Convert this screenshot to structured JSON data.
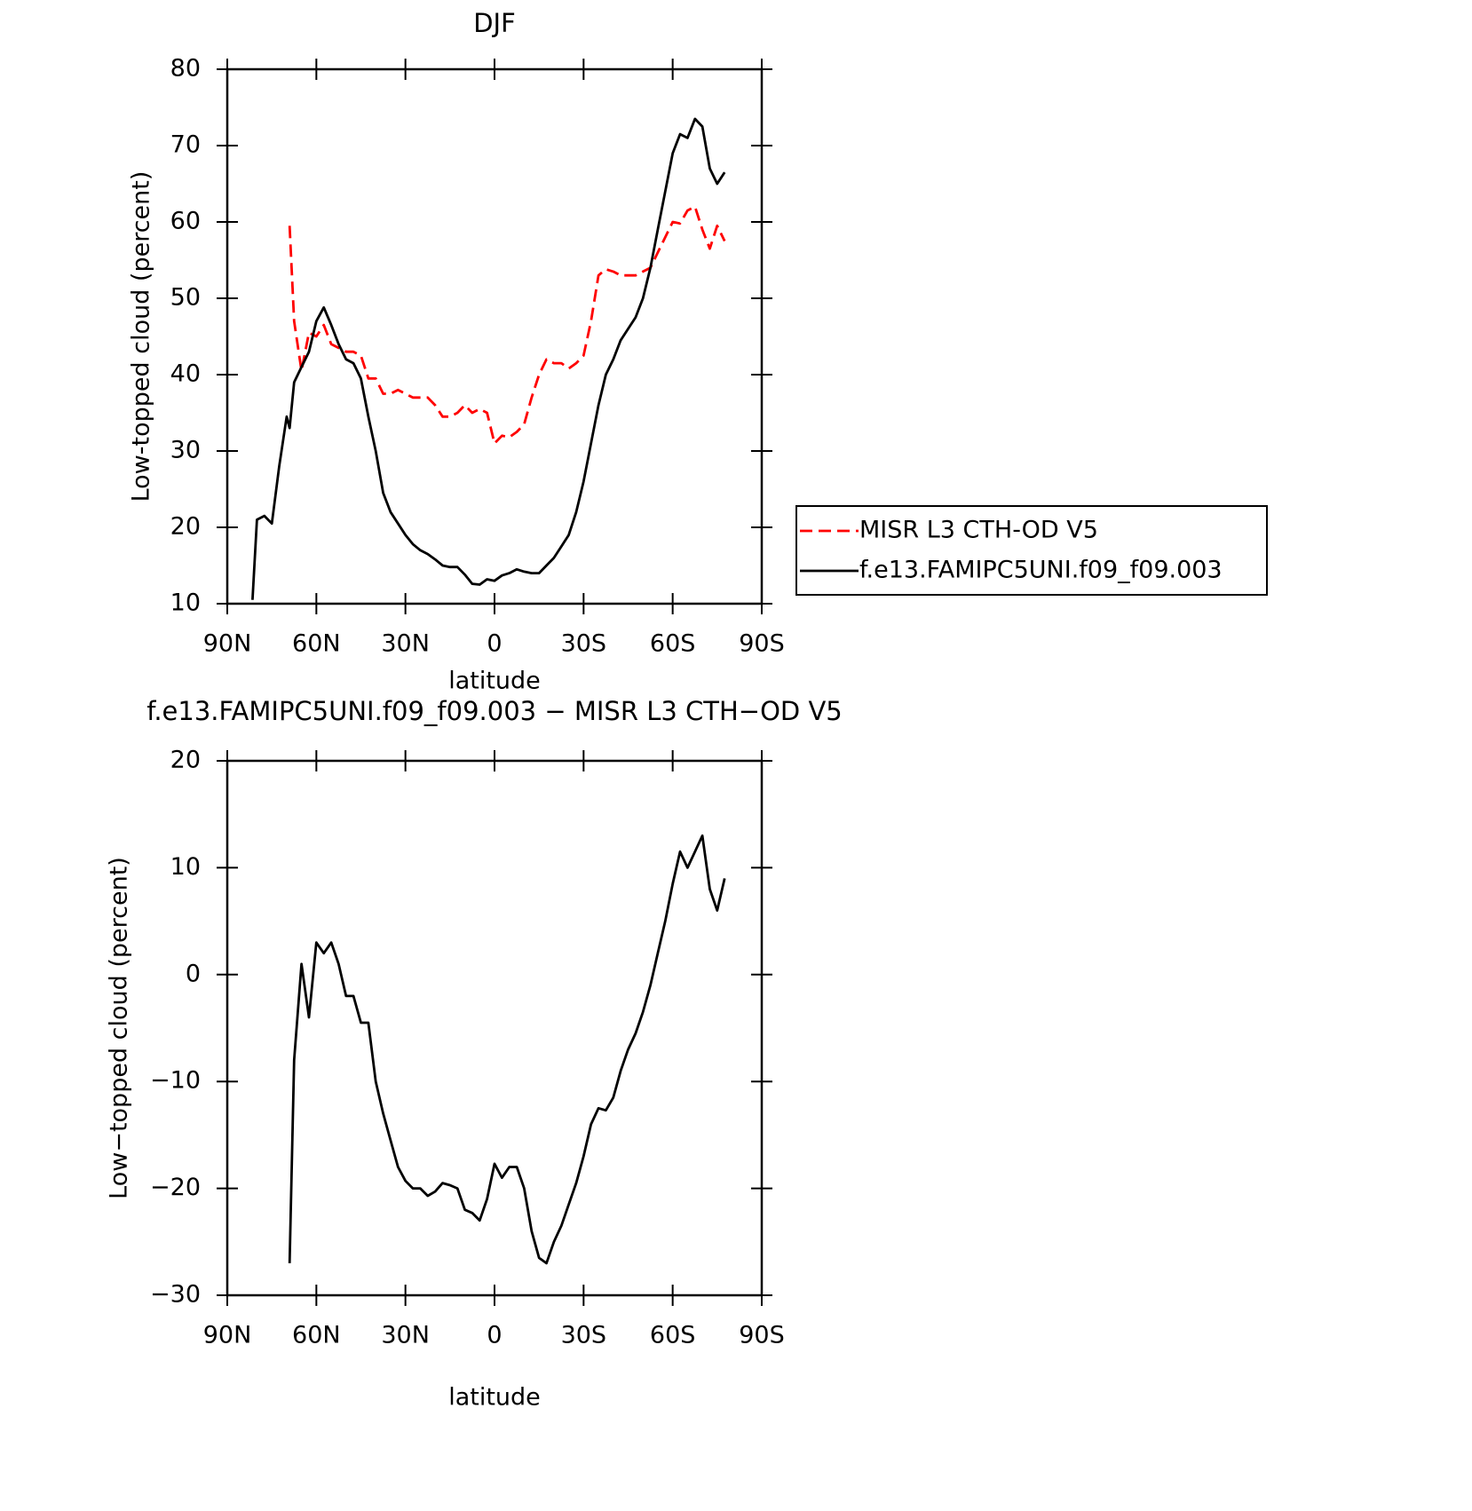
{
  "chart_data": [
    {
      "type": "line",
      "title": "DJF",
      "xlabel": "latitude",
      "ylabel": "Low-topped cloud (percent)",
      "x": [
        81.5,
        80,
        77.5,
        75,
        72.5,
        70,
        69,
        67.5,
        65,
        62.5,
        60,
        57.5,
        55,
        52.5,
        50,
        47.5,
        45,
        42.5,
        40,
        37.5,
        35,
        32.5,
        30,
        27.5,
        25,
        22.5,
        20,
        17.5,
        15,
        12.5,
        10,
        7.5,
        5,
        2.5,
        0,
        -2.5,
        -5,
        -7.5,
        -10,
        -12.5,
        -15,
        -17.5,
        -20,
        -22.5,
        -25,
        -27.5,
        -30,
        -32.5,
        -35,
        -37.5,
        -40,
        -42.5,
        -45,
        -47.5,
        -50,
        -52.5,
        -55,
        -57.5,
        -60,
        -62.5,
        -65,
        -67.5,
        -70,
        -72.5,
        -75,
        -77.5
      ],
      "series": [
        {
          "name": "MISR L3 CTH-OD V5",
          "color": "#ff0000",
          "dash": true,
          "values": [
            null,
            null,
            null,
            null,
            null,
            null,
            59.5,
            47,
            40.5,
            45.5,
            45,
            46.5,
            44,
            43.5,
            43,
            43,
            42.5,
            39.5,
            39.5,
            37.5,
            37.5,
            38,
            37.5,
            37,
            37,
            37,
            36,
            34.5,
            34.5,
            35,
            36,
            35,
            35.5,
            35,
            31,
            32,
            31.8,
            32.5,
            33.5,
            37,
            40,
            42,
            41.5,
            41.5,
            40.8,
            41.5,
            42.5,
            47,
            53,
            53.8,
            53.5,
            53,
            53,
            53,
            53.5,
            54,
            56,
            58,
            60,
            59.8,
            61.5,
            62,
            59,
            56.5,
            59.5,
            57.5
          ]
        },
        {
          "name": "f.e13.FAMIPC5UNI.f09_f09.003",
          "color": "#000000",
          "dash": false,
          "values": [
            10.5,
            21,
            21.5,
            20.5,
            28,
            34.5,
            33,
            39,
            41,
            43,
            47,
            48.8,
            46.5,
            44,
            42,
            41.5,
            39.5,
            34.5,
            30,
            24.5,
            22,
            20.5,
            19,
            17.8,
            17,
            16.5,
            15.8,
            15,
            14.8,
            14.8,
            13.8,
            12.6,
            12.5,
            13.2,
            13,
            13.7,
            14,
            14.5,
            14.2,
            14,
            14,
            15,
            16,
            17.5,
            19,
            22,
            26,
            31,
            36,
            40,
            42,
            44.5,
            46,
            47.5,
            50,
            54,
            59,
            64,
            69,
            71.5,
            71,
            73.5,
            72.5,
            67,
            65,
            66.5
          ]
        }
      ],
      "xlim": [
        90,
        -90
      ],
      "xticks": [
        {
          "value": 90,
          "label": "90N"
        },
        {
          "value": 60,
          "label": "60N"
        },
        {
          "value": 30,
          "label": "30N"
        },
        0,
        {
          "value": -30,
          "label": "30S"
        },
        {
          "value": -60,
          "label": "60S"
        },
        {
          "value": -90,
          "label": "90S"
        }
      ],
      "ylim": [
        10,
        80
      ],
      "yticks": [
        10,
        20,
        30,
        40,
        50,
        60,
        70,
        80
      ],
      "legend": "outside-right"
    },
    {
      "type": "line",
      "title": "f.e13.FAMIPC5UNI.f09_f09.003 − MISR L3 CTH−OD V5",
      "xlabel": "latitude",
      "ylabel": "Low−topped cloud (percent)",
      "x": [
        69,
        67.5,
        65,
        62.5,
        60,
        57.5,
        55,
        52.5,
        50,
        47.5,
        45,
        42.5,
        40,
        37.5,
        35,
        32.5,
        30,
        27.5,
        25,
        22.5,
        20,
        17.5,
        15,
        12.5,
        10,
        7.5,
        5,
        2.5,
        0,
        -2.5,
        -5,
        -7.5,
        -10,
        -12.5,
        -15,
        -17.5,
        -20,
        -22.5,
        -25,
        -27.5,
        -30,
        -32.5,
        -35,
        -37.5,
        -40,
        -42.5,
        -45,
        -47.5,
        -50,
        -52.5,
        -55,
        -57.5,
        -60,
        -62.5,
        -65,
        -67.5,
        -70,
        -72.5,
        -75,
        -77.5
      ],
      "series": [
        {
          "color": "#000000",
          "dash": false,
          "values": [
            -27,
            -8,
            1,
            -4,
            3,
            2,
            3,
            1,
            -2,
            -2,
            -4.5,
            -4.5,
            -10,
            -13,
            -15.5,
            -18,
            -19.3,
            -20,
            -20,
            -20.7,
            -20.3,
            -19.5,
            -19.7,
            -20,
            -22,
            -22.3,
            -23,
            -21,
            -17.7,
            -19,
            -18,
            -18,
            -20,
            -24,
            -26.5,
            -27,
            -25,
            -23.5,
            -21.5,
            -19.5,
            -17,
            -14,
            -12.5,
            -12.7,
            -11.5,
            -9,
            -7,
            -5.5,
            -3.5,
            -1,
            2,
            5,
            8.5,
            11.5,
            10,
            11.5,
            13,
            8,
            6,
            9
          ]
        }
      ],
      "xlim": [
        90,
        -90
      ],
      "xticks": [
        {
          "value": 90,
          "label": "90N"
        },
        {
          "value": 60,
          "label": "60N"
        },
        {
          "value": 30,
          "label": "30N"
        },
        0,
        {
          "value": -30,
          "label": "30S"
        },
        {
          "value": -60,
          "label": "60S"
        },
        {
          "value": -90,
          "label": "90S"
        }
      ],
      "ylim": [
        -30,
        20
      ],
      "yticks": [
        {
          "value": -30,
          "label": "−30"
        },
        {
          "value": -20,
          "label": "−20"
        },
        {
          "value": -10,
          "label": "−10"
        },
        0,
        10,
        20
      ]
    }
  ]
}
